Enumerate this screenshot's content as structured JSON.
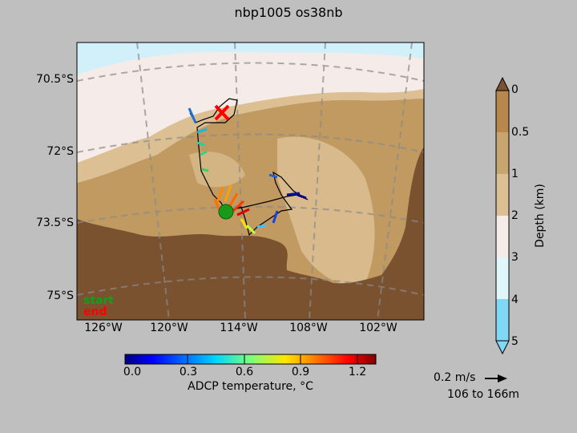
{
  "title": "nbp1005 os38nb",
  "map": {
    "lat_labels": [
      "70.5°S",
      "72°S",
      "73.5°S",
      "75°S"
    ],
    "lon_labels": [
      "126°W",
      "120°W",
      "114°W",
      "108°W",
      "102°W"
    ],
    "legend": {
      "start": "start",
      "end": "end"
    },
    "colors": {
      "deep_brown": "#7a5230",
      "mid_brown": "#c09a60",
      "light_tan": "#dcc094",
      "pale": "#f5ebe8",
      "ice_blue": "#d2f0fa"
    }
  },
  "depth_colorbar": {
    "label": "Depth (km)",
    "ticks": [
      "0",
      "0.5",
      "1",
      "2",
      "3",
      "4",
      "5"
    ],
    "colors": [
      "#b8874e",
      "#c6a56e",
      "#dcc094",
      "#f5ebe8",
      "#dff6fb",
      "#bfeefa",
      "#7fd8f5"
    ]
  },
  "temp_colorbar": {
    "label": "ADCP temperature, °C",
    "ticks": [
      "0.0",
      "0.3",
      "0.6",
      "0.9",
      "1.2"
    ]
  },
  "scale": {
    "speed_label": "0.2 m/s",
    "range_label": "106 to 166m"
  }
}
